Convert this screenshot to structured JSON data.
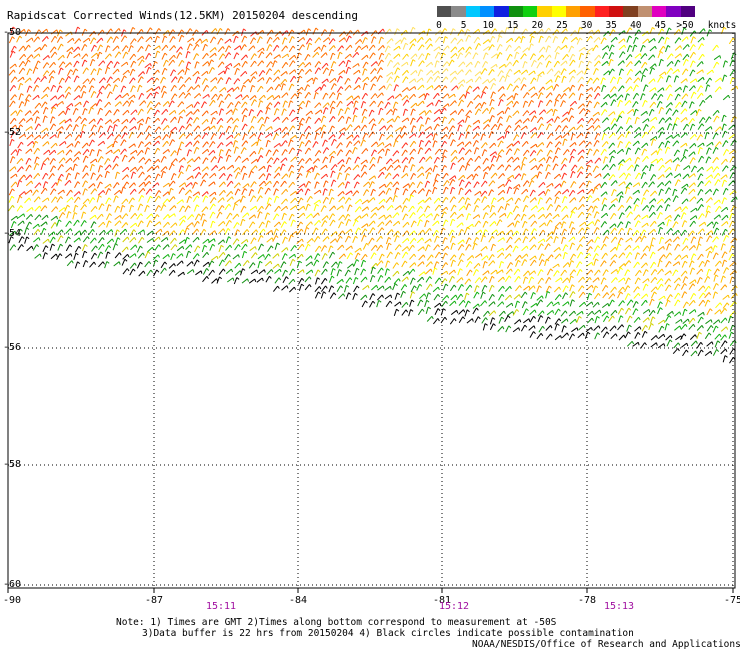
{
  "title": "Rapidscat Corrected Winds(12.5KM) 20150204 descending",
  "legend": {
    "units": "knots",
    "labels": [
      "0",
      "5",
      "10",
      "15",
      "20",
      "25",
      "30",
      "35",
      "40",
      "45",
      ">50"
    ],
    "colors": [
      "#505050",
      "#8a8a8a",
      "#00c8ff",
      "#0090ff",
      "#1020e0",
      "#109010",
      "#10d010",
      "#ffd000",
      "#ffff00",
      "#ffa000",
      "#ff6000",
      "#ff2020",
      "#d01010",
      "#804020",
      "#c09070",
      "#e000c0",
      "#8000c0",
      "#500080"
    ]
  },
  "axes": {
    "lon_labels": [
      "-90",
      "-87",
      "-84",
      "-81",
      "-78",
      "-75"
    ],
    "lat_labels": [
      "-50",
      "-52",
      "-54",
      "-56",
      "-58",
      "-60"
    ]
  },
  "times": [
    "15:11",
    "15:12",
    "15:13"
  ],
  "notes": {
    "line1": "Note: 1) Times are GMT 2)Times along bottom correspond to measurement at -50S",
    "line2": "3)Data buffer is 22 hrs from 20150204 4) Black circles indicate possible contamination",
    "credit": "NOAA/NESDIS/Office of Research and Applications"
  }
}
